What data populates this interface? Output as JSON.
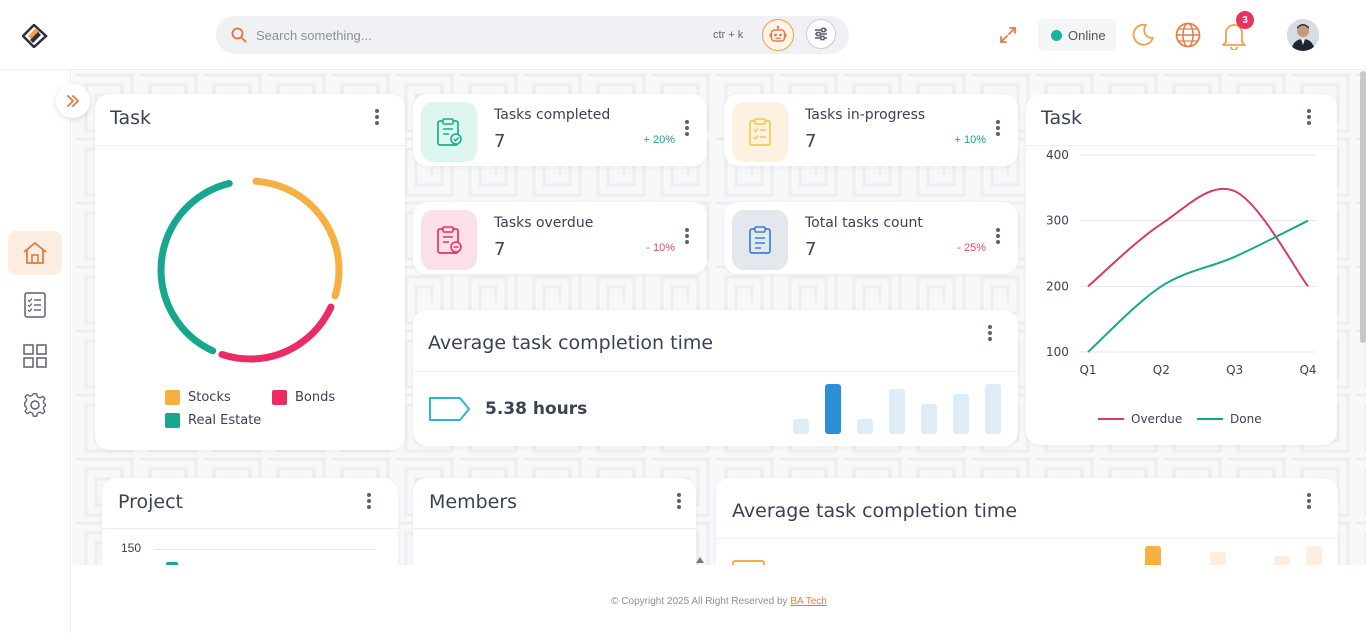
{
  "header": {
    "search_placeholder": "Search something...",
    "shortcut": "ctr + k",
    "status": "Online",
    "notification_count": "3"
  },
  "sidebar": {
    "items": [
      {
        "icon": "home-icon",
        "active": true
      },
      {
        "icon": "checklist-icon",
        "active": false
      },
      {
        "icon": "grid-icon",
        "active": false
      },
      {
        "icon": "gear-icon",
        "active": false
      }
    ]
  },
  "task_donut": {
    "title": "Task",
    "legend": [
      {
        "label": "Stocks",
        "color": "#f5b041"
      },
      {
        "label": "Bonds",
        "color": "#ec2a63"
      },
      {
        "label": "Real Estate",
        "color": "#17a78e"
      }
    ]
  },
  "stats": [
    {
      "label": "Tasks completed",
      "value": "7",
      "trend": "+ 20%",
      "direction": "up",
      "icon": "clipboard-check-icon",
      "color": "#17b08f",
      "bg": "#dff5ef"
    },
    {
      "label": "Tasks in-progress",
      "value": "7",
      "trend": "+ 10%",
      "direction": "up",
      "icon": "clipboard-list-icon",
      "color": "#f2c94c",
      "bg": "#fdf2e2"
    },
    {
      "label": "Tasks overdue",
      "value": "7",
      "trend": "- 10%",
      "direction": "down",
      "icon": "clipboard-minus-icon",
      "color": "#e8335f",
      "bg": "#fbe1e7"
    },
    {
      "label": "Total tasks count",
      "value": "7",
      "trend": "- 25%",
      "direction": "down",
      "icon": "clipboard-icon",
      "color": "#3e7fd4",
      "bg": "#e3e8ef"
    }
  ],
  "avg_time": {
    "title": "Average task completion time",
    "value": "5.38 hours",
    "bars": [
      0.3,
      1.0,
      0.3,
      0.9,
      0.6,
      0.8,
      1.0
    ],
    "highlight_index": 1
  },
  "task_chart": {
    "title": "Task"
  },
  "chart_data": {
    "type": "line",
    "title": "Task",
    "categories": [
      "Q1",
      "Q2",
      "Q3",
      "Q4"
    ],
    "ylim": [
      100,
      400
    ],
    "yticks": [
      100,
      200,
      300,
      400
    ],
    "grid": true,
    "legend_position": "bottom",
    "series": [
      {
        "name": "Overdue",
        "values": [
          200,
          295,
          345,
          200
        ],
        "color": "#d8386a"
      },
      {
        "name": "Done",
        "values": [
          100,
          200,
          245,
          300
        ],
        "color": "#17a78e"
      }
    ]
  },
  "project": {
    "title": "Project",
    "first_tick": "150"
  },
  "members": {
    "title": "Members"
  },
  "avg_time_2": {
    "title": "Average task completion time"
  },
  "footer": {
    "text": "© Copyright 2025 All Right Reserved by",
    "link": "BA Tech"
  }
}
